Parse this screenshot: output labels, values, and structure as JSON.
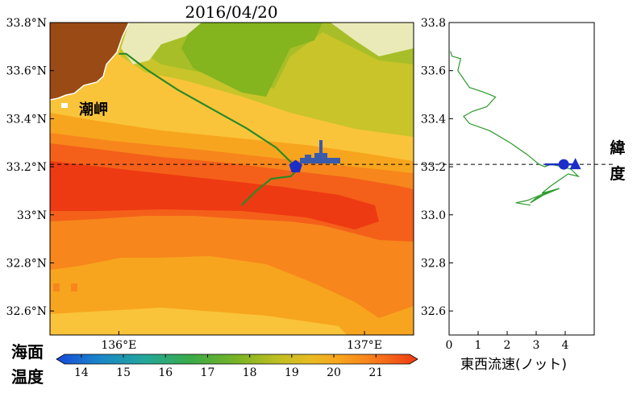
{
  "chart_data": [
    {
      "type": "heatmap",
      "title": "2016/04/20",
      "xlabel": "",
      "ylabel": "",
      "xlim": [
        135.72,
        137.2
      ],
      "ylim": [
        32.5,
        33.8
      ],
      "x_ticks": [
        136.0,
        137.0
      ],
      "x_tick_labels": [
        "136°E",
        "137°E"
      ],
      "y_ticks": [
        32.6,
        32.8,
        33.0,
        33.2,
        33.4,
        33.6,
        33.8
      ],
      "y_tick_labels": [
        "32.6°N",
        "32.8°N",
        "33°N",
        "33.2°N",
        "33.4°N",
        "33.6°N",
        "33.8°N"
      ],
      "reference_line_lat": 33.21,
      "place_label": "潮岬",
      "ship_track": {
        "lon": [
          136.0,
          136.03,
          136.12,
          136.24,
          136.38,
          136.52,
          136.64,
          136.7,
          136.72,
          136.72,
          136.7,
          136.62,
          136.56,
          136.5
        ],
        "lat": [
          33.67,
          33.67,
          33.6,
          33.52,
          33.44,
          33.36,
          33.28,
          33.22,
          33.2,
          33.18,
          33.16,
          33.15,
          33.1,
          33.04
        ]
      },
      "current_position": {
        "lon": 136.72,
        "lat": 33.2
      },
      "colorbar": {
        "label": "海面温度",
        "ticks": [
          14,
          15,
          16,
          17,
          18,
          19,
          20,
          21
        ],
        "range": [
          13.6,
          21.8
        ],
        "colors": [
          "#1848d8",
          "#1a86c8",
          "#24a898",
          "#3aaa48",
          "#78b424",
          "#b8be22",
          "#e6bc22",
          "#f7a51e",
          "#f7861c",
          "#f4601a",
          "#ee3a12"
        ]
      },
      "regions": [
        {
          "name": "land",
          "color": "#9a4a14"
        },
        {
          "name": "t22",
          "color": "#ee3a12"
        },
        {
          "name": "t21",
          "color": "#f4601a"
        },
        {
          "name": "t20",
          "color": "#f7861c"
        },
        {
          "name": "t19",
          "color": "#f7a51e"
        },
        {
          "name": "t18",
          "color": "#fac43a"
        },
        {
          "name": "t17",
          "color": "#c8c42a"
        },
        {
          "name": "t16",
          "color": "#a8be28"
        },
        {
          "name": "t15",
          "color": "#84b41e"
        },
        {
          "name": "cool",
          "color": "#eaeab8"
        }
      ],
      "ylabel_right": "緯度"
    },
    {
      "type": "line",
      "xlabel": "東西流速(ノット)",
      "ylabel": "",
      "xlim": [
        0,
        5
      ],
      "ylim": [
        32.5,
        33.8
      ],
      "x_ticks": [
        0,
        1,
        2,
        3,
        4
      ],
      "y_ticks": [
        32.6,
        32.8,
        33.0,
        33.2,
        33.4,
        33.6,
        33.8
      ],
      "y_tick_labels": [
        "32.6",
        "32.8",
        "33.0",
        "33.2",
        "33.4",
        "33.6",
        "33.8"
      ],
      "reference_line_lat": 33.21,
      "series": [
        {
          "x": [
            0.05,
            0.1,
            0.4,
            0.3,
            0.7,
            1.2,
            1.6,
            1.3,
            0.8,
            0.5,
            0.7,
            1.4,
            2.1,
            2.7,
            3.1,
            3.3,
            3.5,
            3.9,
            4.2,
            4.45,
            4.1,
            3.5,
            3.2,
            3.8,
            3.0,
            2.8,
            3.5,
            2.7,
            2.3,
            2.8
          ],
          "y": [
            33.68,
            33.66,
            33.65,
            33.6,
            33.53,
            33.51,
            33.49,
            33.45,
            33.43,
            33.41,
            33.38,
            33.35,
            33.3,
            33.25,
            33.21,
            33.2,
            33.21,
            33.2,
            33.19,
            33.16,
            33.17,
            33.12,
            33.09,
            33.11,
            33.07,
            33.05,
            33.1,
            33.06,
            33.05,
            33.04
          ]
        }
      ],
      "markers": [
        {
          "shape": "circle",
          "x": 3.95,
          "y": 33.21
        },
        {
          "shape": "triangle",
          "x": 4.35,
          "y": 33.21
        }
      ]
    }
  ]
}
